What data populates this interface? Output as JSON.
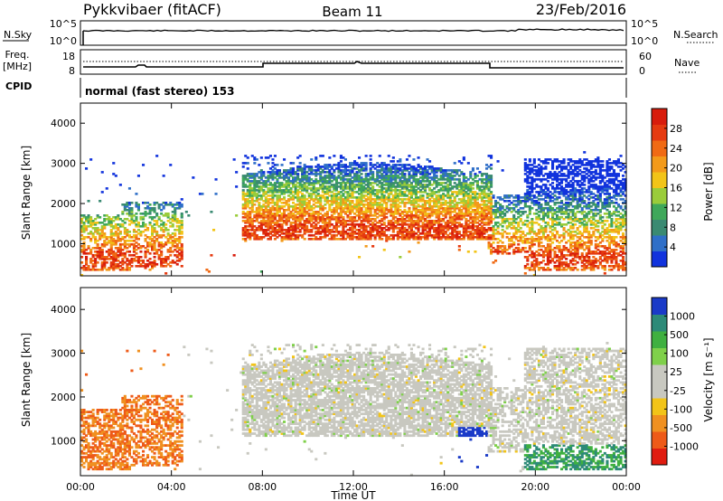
{
  "header": {
    "station": "Pykkvibaer (fitACF)",
    "beam": "Beam 11",
    "date": "23/Feb/2016"
  },
  "noise_panel": {
    "left_label": "N.Sky",
    "right_label": "N.Search",
    "left_ticks": [
      "10^5",
      "10^0"
    ],
    "right_ticks": [
      "10^5",
      "10^0"
    ]
  },
  "freq_panel": {
    "left_label_line1": "Freq.",
    "left_label_line2": "[MHz]",
    "right_label": "Nave",
    "left_ticks": [
      "18",
      "8"
    ],
    "right_ticks": [
      "60",
      "0"
    ]
  },
  "cpid": {
    "label": "CPID",
    "text": "normal (fast stereo) 153"
  },
  "colors": {
    "power_scale": [
      "#1133dd",
      "#2f6fc8",
      "#3a8a72",
      "#3fa85a",
      "#9acc3a",
      "#f2c418",
      "#f39a1a",
      "#f06a14",
      "#e53a10",
      "#d81c0c"
    ],
    "velocity_scale": [
      "#1a3ac8",
      "#2d8a78",
      "#3fb040",
      "#7fd04a",
      "#c8c8c0",
      "#c8c8c0",
      "#f2c418",
      "#f09020",
      "#ee5a18",
      "#e01c10"
    ]
  },
  "chart_data": [
    {
      "type": "heatmap",
      "name": "power",
      "ylabel": "Slant Range [km]",
      "xlabel": "",
      "x_ticks": [
        "00:00",
        "04:00",
        "08:00",
        "12:00",
        "16:00",
        "20:00",
        "00:00"
      ],
      "y_ticks": [
        "1000",
        "2000",
        "3000",
        "4000"
      ],
      "ylim": [
        200,
        4500
      ],
      "colorbar": {
        "label": "Power [dB]",
        "ticks": [
          "4",
          "8",
          "12",
          "16",
          "20",
          "24",
          "28"
        ],
        "range": [
          0,
          32
        ]
      }
    },
    {
      "type": "heatmap",
      "name": "velocity",
      "ylabel": "Slant Range [km]",
      "xlabel": "Time UT",
      "x_ticks": [
        "00:00",
        "04:00",
        "08:00",
        "12:00",
        "16:00",
        "20:00",
        "00:00"
      ],
      "y_ticks": [
        "1000",
        "2000",
        "3000",
        "4000"
      ],
      "ylim": [
        200,
        4500
      ],
      "colorbar": {
        "label": "Velocity [m s⁻¹]",
        "ticks": [
          "1000",
          "500",
          "100",
          "25",
          "-25",
          "-100",
          "-500",
          "-1000"
        ]
      }
    }
  ]
}
